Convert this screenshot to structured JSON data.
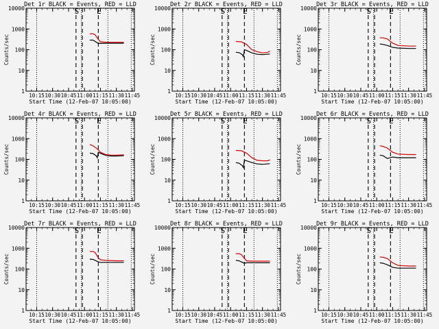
{
  "colors": {
    "background": "#f3f3f3",
    "events": "#000000",
    "lld": "#d40000",
    "axis": "#000000"
  },
  "panel_titles": [
    "Det 1r BLACK = Events, RED = LLD",
    "Det 2r BLACK = Events, RED = LLD",
    "Det 3r BLACK = Events, RED = LLD",
    "Det 4r BLACK = Events, RED = LLD",
    "Det 5r BLACK = Events, RED = LLD",
    "Det 6r BLACK = Events, RED = LLD",
    "Det 7r BLACK = Events, RED = LLD",
    "Det 8r BLACK = Events, RED = LLD",
    "Det 9r BLACK = Events, RED = LLD"
  ],
  "chart_data": {
    "type": "line",
    "layout": "3x3 grid",
    "scale": {
      "y": "log"
    },
    "ylabel": "Counts/sec",
    "xlabel": "Start Time (12-Feb-07 10:05:00)",
    "xlim": [
      "10:05",
      "11:47"
    ],
    "ylim": [
      1,
      10000
    ],
    "xticks": [
      "10:15",
      "10:30",
      "10:45",
      "11:00",
      "11:15",
      "11:30",
      "11:45"
    ],
    "yticks": [
      "1",
      "10",
      "100",
      "1000",
      "10000"
    ],
    "dotted_lines": [
      "10:05",
      "10:15",
      "10:57",
      "11:22",
      "11:44"
    ],
    "dashed_lines": [
      {
        "time": "10:52",
        "label": "S"
      },
      {
        "time": "10:58",
        "label": ""
      },
      {
        "time": "11:13",
        "label": "E"
      }
    ],
    "panels": [
      {
        "title": "Det 1r BLACK = Events, RED = LLD",
        "series": [
          {
            "color": "#d40000",
            "x": [
              "11:05",
              "11:08",
              "11:10",
              "11:13",
              "11:15",
              "11:20",
              "11:30",
              "11:37"
            ],
            "y": [
              580,
              590,
              520,
              320,
              240,
              230,
              230,
              230
            ]
          },
          {
            "color": "#000000",
            "x": [
              "11:05",
              "11:08",
              "11:10",
              "11:13",
              "11:15",
              "11:20",
              "11:30",
              "11:37"
            ],
            "y": [
              290,
              290,
              250,
              200,
              200,
              205,
              205,
              205
            ]
          }
        ]
      },
      {
        "title": "Det 2r BLACK = Events, RED = LLD",
        "series": [
          {
            "color": "#d40000",
            "x": [
              "11:05",
              "11:10",
              "11:15",
              "11:20",
              "11:25",
              "11:30",
              "11:35",
              "11:37"
            ],
            "y": [
              250,
              240,
              180,
              100,
              80,
              70,
              75,
              85
            ]
          },
          {
            "color": "#000000",
            "x": [
              "11:05",
              "11:08",
              "11:11",
              "11:12",
              "11:13",
              "11:15",
              "11:20",
              "11:25",
              "11:30",
              "11:37"
            ],
            "y": [
              75,
              72,
              58,
              46,
              100,
              92,
              70,
              60,
              58,
              62
            ]
          }
        ]
      },
      {
        "title": "Det 3r BLACK = Events, RED = LLD",
        "series": [
          {
            "color": "#d40000",
            "x": [
              "11:03",
              "11:06",
              "11:10",
              "11:15",
              "11:20",
              "11:30",
              "11:37"
            ],
            "y": [
              380,
              370,
              330,
              210,
              160,
              150,
              150
            ]
          },
          {
            "color": "#000000",
            "x": [
              "11:03",
              "11:06",
              "11:10",
              "11:15",
              "11:20",
              "11:30",
              "11:37"
            ],
            "y": [
              190,
              180,
              160,
              130,
              120,
              115,
              115
            ]
          }
        ]
      },
      {
        "title": "Det 4r BLACK = Events, RED = LLD",
        "series": [
          {
            "color": "#d40000",
            "x": [
              "11:05",
              "11:08",
              "11:12",
              "11:15",
              "11:20",
              "11:25",
              "11:30",
              "11:37"
            ],
            "y": [
              520,
              450,
              320,
              220,
              170,
              160,
              160,
              165
            ]
          },
          {
            "color": "#000000",
            "x": [
              "11:05",
              "11:08",
              "11:11",
              "11:12",
              "11:13",
              "11:15",
              "11:20",
              "11:25",
              "11:30",
              "11:37"
            ],
            "y": [
              200,
              190,
              150,
              120,
              220,
              195,
              155,
              145,
              145,
              150
            ]
          }
        ]
      },
      {
        "title": "Det 5r BLACK = Events, RED = LLD",
        "series": [
          {
            "color": "#d40000",
            "x": [
              "11:05",
              "11:10",
              "11:15",
              "11:20",
              "11:25",
              "11:30",
              "11:35",
              "11:37"
            ],
            "y": [
              270,
              260,
              200,
              120,
              90,
              85,
              85,
              95
            ]
          },
          {
            "color": "#000000",
            "x": [
              "11:05",
              "11:08",
              "11:11",
              "11:12",
              "11:13",
              "11:15",
              "11:20",
              "11:25",
              "11:30",
              "11:37"
            ],
            "y": [
              70,
              65,
              50,
              40,
              90,
              85,
              70,
              60,
              58,
              62
            ]
          }
        ]
      },
      {
        "title": "Det 6r BLACK = Events, RED = LLD",
        "series": [
          {
            "color": "#d40000",
            "x": [
              "11:03",
              "11:06",
              "11:10",
              "11:15",
              "11:20",
              "11:30",
              "11:37"
            ],
            "y": [
              450,
              420,
              350,
              220,
              180,
              170,
              170
            ]
          },
          {
            "color": "#000000",
            "x": [
              "11:03",
              "11:06",
              "11:10",
              "11:15",
              "11:20",
              "11:30",
              "11:37"
            ],
            "y": [
              160,
              150,
              110,
              130,
              120,
              120,
              120
            ]
          }
        ]
      },
      {
        "title": "Det 7r BLACK = Events, RED = LLD",
        "series": [
          {
            "color": "#d40000",
            "x": [
              "11:05",
              "11:08",
              "11:10",
              "11:13",
              "11:15",
              "11:20",
              "11:30",
              "11:37"
            ],
            "y": [
              700,
              700,
              620,
              350,
              280,
              260,
              250,
              250
            ]
          },
          {
            "color": "#000000",
            "x": [
              "11:05",
              "11:08",
              "11:10",
              "11:13",
              "11:15",
              "11:20",
              "11:30",
              "11:37"
            ],
            "y": [
              300,
              290,
              260,
              220,
              210,
              210,
              210,
              210
            ]
          }
        ]
      },
      {
        "title": "Det 8r BLACK = Events, RED = LLD",
        "series": [
          {
            "color": "#d40000",
            "x": [
              "11:05",
              "11:08",
              "11:10",
              "11:13",
              "11:15",
              "11:20",
              "11:30",
              "11:37"
            ],
            "y": [
              550,
              550,
              500,
              330,
              250,
              240,
              240,
              240
            ]
          },
          {
            "color": "#000000",
            "x": [
              "11:05",
              "11:08",
              "11:10",
              "11:13",
              "11:15",
              "11:20",
              "11:30",
              "11:37"
            ],
            "y": [
              260,
              250,
              220,
              190,
              200,
              200,
              200,
              200
            ]
          }
        ]
      },
      {
        "title": "Det 9r BLACK = Events, RED = LLD",
        "series": [
          {
            "color": "#d40000",
            "x": [
              "11:03",
              "11:06",
              "11:10",
              "11:15",
              "11:20",
              "11:30",
              "11:37"
            ],
            "y": [
              380,
              370,
              320,
              200,
              150,
              140,
              140
            ]
          },
          {
            "color": "#000000",
            "x": [
              "11:03",
              "11:06",
              "11:10",
              "11:15",
              "11:20",
              "11:30",
              "11:37"
            ],
            "y": [
              200,
              190,
              160,
              120,
              110,
              110,
              110
            ]
          }
        ]
      }
    ]
  }
}
